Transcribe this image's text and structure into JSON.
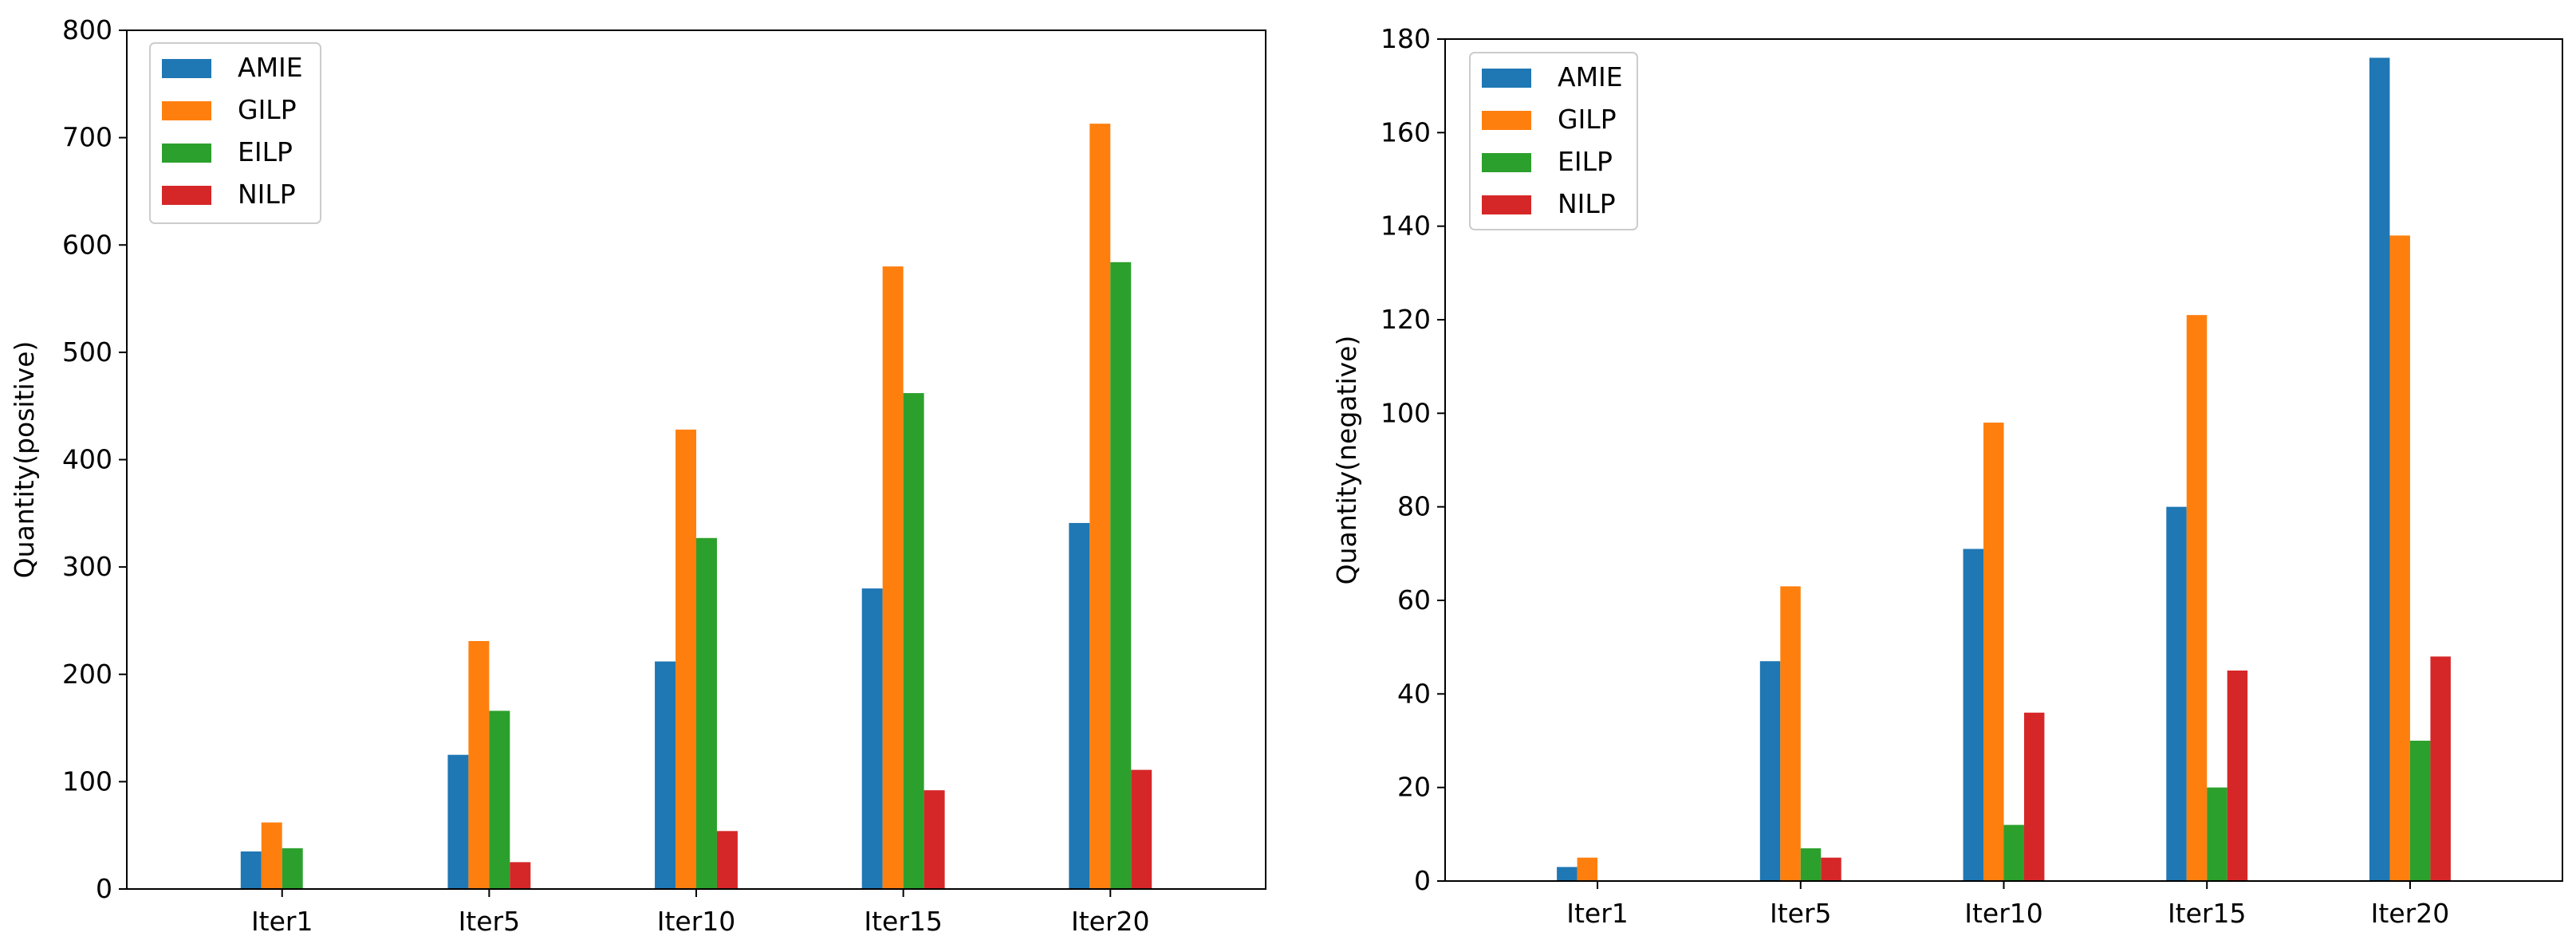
{
  "chart_data": [
    {
      "type": "bar",
      "title": "",
      "xlabel": "",
      "ylabel": "Quantity(positive)",
      "ylim": [
        0,
        800
      ],
      "yticks": [
        0,
        100,
        200,
        300,
        400,
        500,
        600,
        700,
        800
      ],
      "categories": [
        "Iter1",
        "Iter5",
        "Iter10",
        "Iter15",
        "Iter20"
      ],
      "legend_position": "top-left",
      "series": [
        {
          "name": "AMIE",
          "color": "#1f77b4",
          "values": [
            35,
            125,
            212,
            280,
            341
          ]
        },
        {
          "name": "GILP",
          "color": "#ff7f0e",
          "values": [
            62,
            231,
            428,
            580,
            713
          ]
        },
        {
          "name": "EILP",
          "color": "#2ca02c",
          "values": [
            38,
            166,
            327,
            462,
            584
          ]
        },
        {
          "name": "NILP",
          "color": "#d62728",
          "values": [
            0,
            25,
            54,
            92,
            111
          ]
        }
      ]
    },
    {
      "type": "bar",
      "title": "",
      "xlabel": "",
      "ylabel": "Quantity(negative)",
      "ylim": [
        0,
        180
      ],
      "yticks": [
        0,
        20,
        40,
        60,
        80,
        100,
        120,
        140,
        160,
        180
      ],
      "categories": [
        "Iter1",
        "Iter5",
        "Iter10",
        "Iter15",
        "Iter20"
      ],
      "legend_position": "top-left",
      "series": [
        {
          "name": "AMIE",
          "color": "#1f77b4",
          "values": [
            3,
            47,
            71,
            80,
            176
          ]
        },
        {
          "name": "GILP",
          "color": "#ff7f0e",
          "values": [
            5,
            63,
            98,
            121,
            138
          ]
        },
        {
          "name": "EILP",
          "color": "#2ca02c",
          "values": [
            0,
            7,
            12,
            20,
            30
          ]
        },
        {
          "name": "NILP",
          "color": "#d62728",
          "values": [
            0,
            5,
            36,
            45,
            48
          ]
        }
      ]
    }
  ]
}
